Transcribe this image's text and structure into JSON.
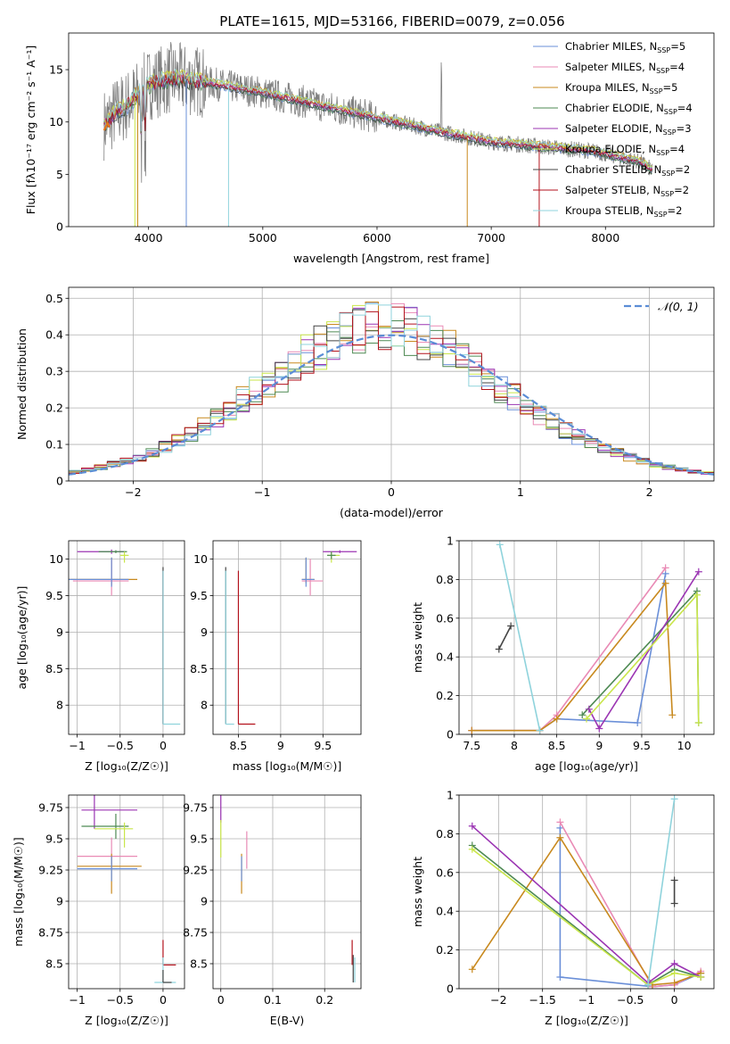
{
  "colors": {
    "Chabrier MILES": "#6a8fd8",
    "Salpeter MILES": "#e98ab5",
    "Kroupa MILES": "#c8891e",
    "Chabrier ELODIE": "#4e8a53",
    "Salpeter ELODIE": "#9b35b3",
    "Kroupa ELODIE": "#c9e64a",
    "Chabrier STELIB": "#444444",
    "Salpeter STELIB": "#b3121c",
    "Kroupa STELIB": "#8fd3dc",
    "data": "#808080",
    "extra": "#e07a1e",
    "normal": "#5b8dd6"
  },
  "chart_data": [
    {
      "type": "line",
      "title": "PLATE=1615, MJD=53166, FIBERID=0079, z=0.056",
      "xlabel": "wavelength [Angstrom, rest frame]",
      "ylabel": "Flux [fλ10⁻¹⁷ erg cm⁻² s⁻¹ A⁻¹]",
      "xlim": [
        3300,
        8950
      ],
      "ylim": [
        0,
        18.5
      ],
      "xticks": [
        4000,
        5000,
        6000,
        7000,
        8000
      ],
      "yticks": [
        0,
        5,
        10,
        15
      ],
      "legend_position": "top-right",
      "legend": [
        {
          "name": "Chabrier MILES",
          "suffix": "=5"
        },
        {
          "name": "Salpeter MILES",
          "suffix": "=4"
        },
        {
          "name": "Kroupa MILES",
          "suffix": "=5"
        },
        {
          "name": "Chabrier ELODIE",
          "suffix": "=4"
        },
        {
          "name": "Salpeter ELODIE",
          "suffix": "=3"
        },
        {
          "name": "Kroupa ELODIE",
          "suffix": "=4"
        },
        {
          "name": "Chabrier STELIB",
          "suffix": "=2"
        },
        {
          "name": "Salpeter STELIB",
          "suffix": "=2"
        },
        {
          "name": "Kroupa STELIB",
          "suffix": "=2"
        }
      ],
      "continuum": {
        "x": [
          3620,
          3700,
          3800,
          3900,
          4000,
          4200,
          4500,
          5000,
          5500,
          6000,
          6500,
          7000,
          7500,
          7900,
          8100,
          8300,
          8400
        ],
        "y": [
          9.8,
          10.8,
          11.5,
          12.5,
          13.6,
          14.2,
          13.8,
          12.8,
          11.6,
          10.4,
          9.2,
          8.1,
          7.6,
          7.2,
          6.7,
          6.2,
          5.5
        ]
      },
      "grid": false
    },
    {
      "type": "step",
      "xlabel": "(data-model)/error",
      "ylabel": "Normed distribution",
      "xlim": [
        -2.5,
        2.5
      ],
      "ylim": [
        0,
        0.53
      ],
      "xticks": [
        -2,
        -1,
        0,
        1,
        2
      ],
      "yticks": [
        0.0,
        0.1,
        0.2,
        0.3,
        0.4,
        0.5
      ],
      "legend": [
        {
          "label": "𝒩(0, 1)"
        }
      ],
      "legend_position": "top-right",
      "grid": true,
      "bin_centers": [
        -2.45,
        -2.35,
        -2.25,
        -2.15,
        -2.05,
        -1.95,
        -1.85,
        -1.75,
        -1.65,
        -1.55,
        -1.45,
        -1.35,
        -1.25,
        -1.15,
        -1.05,
        -0.95,
        -0.85,
        -0.75,
        -0.65,
        -0.55,
        -0.45,
        -0.35,
        -0.25,
        -0.15,
        -0.05,
        0.05,
        0.15,
        0.25,
        0.35,
        0.45,
        0.55,
        0.65,
        0.75,
        0.85,
        0.95,
        1.05,
        1.15,
        1.25,
        1.35,
        1.45,
        1.55,
        1.65,
        1.75,
        1.85,
        1.95,
        2.05,
        2.15,
        2.25,
        2.35,
        2.45
      ],
      "base_values": [
        0.025,
        0.03,
        0.038,
        0.047,
        0.056,
        0.065,
        0.078,
        0.094,
        0.11,
        0.128,
        0.15,
        0.17,
        0.198,
        0.22,
        0.242,
        0.266,
        0.29,
        0.318,
        0.345,
        0.365,
        0.382,
        0.398,
        0.41,
        0.418,
        0.42,
        0.415,
        0.405,
        0.39,
        0.37,
        0.352,
        0.33,
        0.305,
        0.28,
        0.255,
        0.23,
        0.2,
        0.18,
        0.16,
        0.14,
        0.12,
        0.105,
        0.09,
        0.077,
        0.066,
        0.056,
        0.045,
        0.038,
        0.031,
        0.026,
        0.022
      ]
    },
    {
      "type": "scatter",
      "xlabel": "Z [log₁₀(Z/Z☉)]",
      "ylabel": "age  [log₁₀(age/yr)]",
      "xlim": [
        -1.1,
        0.25
      ],
      "ylim": [
        7.6,
        10.25
      ],
      "xticks": [
        -1.0,
        -0.5,
        0.0
      ],
      "yticks": [
        8.0,
        8.5,
        9.0,
        9.5,
        10.0
      ],
      "grid": true
    },
    {
      "type": "scatter",
      "xlabel": "mass [log₁₀(M/M☉)]",
      "ylabel": "",
      "xlim": [
        8.2,
        9.95
      ],
      "ylim": [
        7.6,
        10.25
      ],
      "xticks": [
        8.5,
        9.0,
        9.5
      ],
      "yticks": [
        8.0,
        8.5,
        9.0,
        9.5,
        10.0
      ],
      "grid": true
    },
    {
      "type": "line",
      "xlabel": "age  [log₁₀(age/yr)]",
      "ylabel": "mass weight",
      "xlim": [
        7.35,
        10.35
      ],
      "ylim": [
        0,
        1.0
      ],
      "xticks": [
        7.5,
        8.0,
        8.5,
        9.0,
        9.5,
        10.0
      ],
      "yticks": [
        0.0,
        0.2,
        0.4,
        0.6,
        0.8,
        1.0
      ],
      "grid": true,
      "series": [
        {
          "color": "Chabrier MILES",
          "x": [
            7.5,
            8.3,
            8.5,
            9.45,
            9.78
          ],
          "y": [
            0.02,
            0.02,
            0.08,
            0.06,
            0.83
          ]
        },
        {
          "color": "Salpeter MILES",
          "x": [
            7.5,
            8.3,
            8.5,
            9.78
          ],
          "y": [
            0.02,
            0.02,
            0.1,
            0.86
          ]
        },
        {
          "color": "Kroupa MILES",
          "x": [
            7.5,
            8.3,
            8.5,
            9.78,
            9.86
          ],
          "y": [
            0.02,
            0.02,
            0.08,
            0.78,
            0.1
          ]
        },
        {
          "color": "Chabrier ELODIE",
          "x": [
            8.8,
            10.15,
            10.17
          ],
          "y": [
            0.1,
            0.74,
            0.06
          ]
        },
        {
          "color": "Salpeter ELODIE",
          "x": [
            8.88,
            9.0,
            10.17
          ],
          "y": [
            0.13,
            0.03,
            0.84
          ]
        },
        {
          "color": "Kroupa ELODIE",
          "x": [
            8.85,
            10.15,
            10.17
          ],
          "y": [
            0.08,
            0.72,
            0.06
          ]
        },
        {
          "color": "Chabrier STELIB",
          "x": [
            7.82,
            7.96
          ],
          "y": [
            0.44,
            0.56
          ]
        },
        {
          "color": "Kroupa STELIB",
          "x": [
            7.83,
            8.3
          ],
          "y": [
            0.98,
            0.02
          ]
        }
      ]
    },
    {
      "type": "scatter",
      "xlabel": "Z [log₁₀(Z/Z☉)]",
      "ylabel": "mass [log₁₀(M/M☉)]",
      "xlim": [
        -1.1,
        0.25
      ],
      "ylim": [
        8.3,
        9.85
      ],
      "xticks": [
        -1.0,
        -0.5,
        0.0
      ],
      "yticks": [
        8.5,
        8.75,
        9.0,
        9.25,
        9.5,
        9.75
      ],
      "grid": true
    },
    {
      "type": "scatter",
      "xlabel": "E(B-V)",
      "ylabel": "",
      "xlim": [
        -0.015,
        0.27
      ],
      "ylim": [
        8.3,
        9.85
      ],
      "xticks": [
        0.0,
        0.1,
        0.2
      ],
      "yticks": [
        8.5,
        8.75,
        9.0,
        9.25,
        9.5,
        9.75
      ],
      "grid": true
    },
    {
      "type": "line",
      "xlabel": "Z [log₁₀(Z/Z☉)]",
      "ylabel": "mass weight",
      "xlim": [
        -2.45,
        0.45
      ],
      "ylim": [
        0,
        1.0
      ],
      "xticks": [
        -2.0,
        -1.5,
        -1.0,
        -0.5,
        0.0
      ],
      "yticks": [
        0.0,
        0.2,
        0.4,
        0.6,
        0.8,
        1.0
      ],
      "grid": true,
      "series": [
        {
          "color": "Chabrier MILES",
          "x": [
            -1.3,
            -1.3,
            -0.25,
            0.0,
            0.3
          ],
          "y": [
            0.83,
            0.06,
            0.01,
            0.02,
            0.08
          ]
        },
        {
          "color": "Salpeter MILES",
          "x": [
            -1.3,
            -0.25,
            0.0,
            0.3
          ],
          "y": [
            0.86,
            0.01,
            0.02,
            0.09
          ]
        },
        {
          "color": "Kroupa MILES",
          "x": [
            -2.3,
            -1.3,
            -0.25,
            0.0,
            0.3
          ],
          "y": [
            0.1,
            0.78,
            0.02,
            0.03,
            0.08
          ]
        },
        {
          "color": "Chabrier ELODIE",
          "x": [
            -2.3,
            -0.3,
            0.0,
            0.3
          ],
          "y": [
            0.74,
            0.02,
            0.1,
            0.06
          ]
        },
        {
          "color": "Salpeter ELODIE",
          "x": [
            -2.3,
            -0.3,
            0.0,
            0.3
          ],
          "y": [
            0.84,
            0.03,
            0.13,
            0.06
          ]
        },
        {
          "color": "Kroupa ELODIE",
          "x": [
            -2.3,
            -0.3,
            0.0,
            0.3
          ],
          "y": [
            0.72,
            0.02,
            0.08,
            0.06
          ]
        },
        {
          "color": "Chabrier STELIB",
          "x": [
            0.0,
            0.0
          ],
          "y": [
            0.44,
            0.56
          ]
        },
        {
          "color": "Kroupa STELIB",
          "x": [
            -0.3,
            0.0
          ],
          "y": [
            0.02,
            0.98
          ]
        }
      ]
    }
  ]
}
